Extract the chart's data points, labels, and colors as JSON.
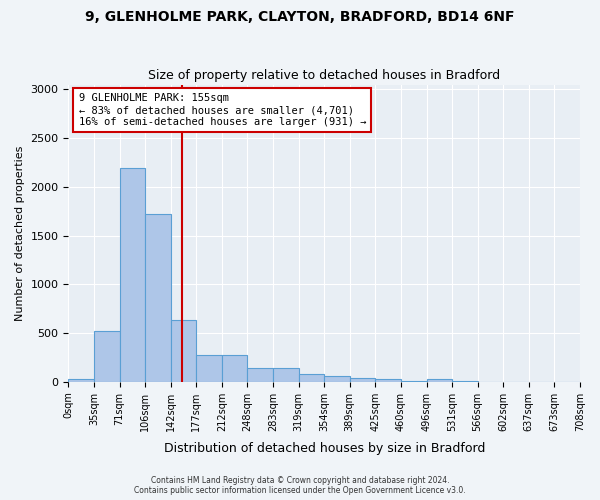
{
  "title": "9, GLENHOLME PARK, CLAYTON, BRADFORD, BD14 6NF",
  "subtitle": "Size of property relative to detached houses in Bradford",
  "xlabel": "Distribution of detached houses by size in Bradford",
  "ylabel": "Number of detached properties",
  "bin_labels": [
    "0sqm",
    "35sqm",
    "71sqm",
    "106sqm",
    "142sqm",
    "177sqm",
    "212sqm",
    "248sqm",
    "283sqm",
    "319sqm",
    "354sqm",
    "389sqm",
    "425sqm",
    "460sqm",
    "496sqm",
    "531sqm",
    "566sqm",
    "602sqm",
    "637sqm",
    "673sqm",
    "708sqm"
  ],
  "bar_values": [
    30,
    520,
    2190,
    1720,
    630,
    270,
    270,
    140,
    140,
    75,
    55,
    40,
    25,
    10,
    25,
    5,
    0,
    0,
    0,
    0
  ],
  "bar_color": "#aec6e8",
  "bar_edge_color": "#5a9fd4",
  "marker_value": 155,
  "marker_color": "#cc0000",
  "annotation_text": "9 GLENHOLME PARK: 155sqm\n← 83% of detached houses are smaller (4,701)\n16% of semi-detached houses are larger (931) →",
  "annotation_box_color": "#ffffff",
  "annotation_box_edge_color": "#cc0000",
  "ylim": [
    0,
    3050
  ],
  "yticks": [
    0,
    500,
    1000,
    1500,
    2000,
    2500,
    3000
  ],
  "background_color": "#e8eef4",
  "grid_color": "#ffffff",
  "footer_line1": "Contains HM Land Registry data © Crown copyright and database right 2024.",
  "footer_line2": "Contains public sector information licensed under the Open Government Licence v3.0.",
  "bin_width": 35
}
